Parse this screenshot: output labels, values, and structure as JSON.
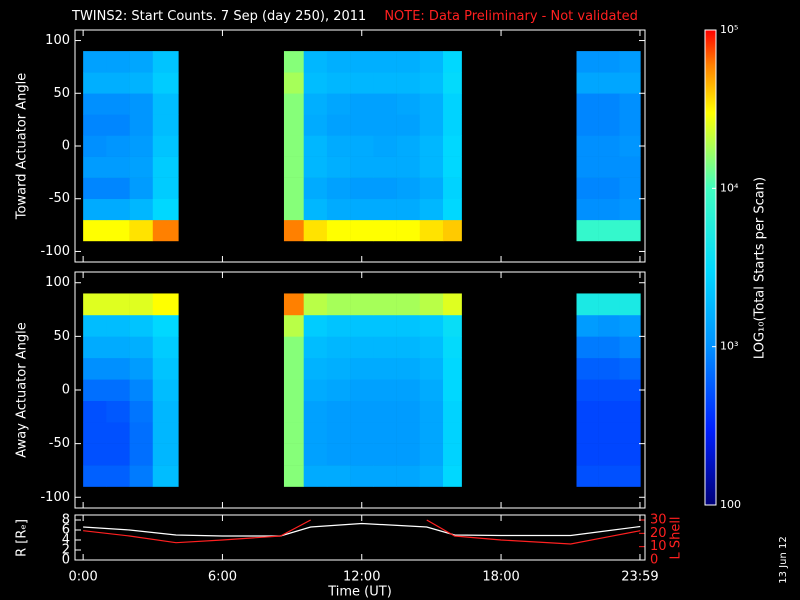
{
  "header": {
    "title": "TWINS2: Start Counts.  7 Sep (day 250), 2011",
    "note": "NOTE: Data Preliminary - Not validated"
  },
  "date_stamp": "13 Jun 12",
  "colorbar": {
    "label": "LOG₁₀(Total Starts per Scan)",
    "lim": [
      100,
      100000
    ],
    "ticks": [
      {
        "value": 100000,
        "label": "10⁵"
      },
      {
        "value": 10000,
        "label": "10⁴"
      },
      {
        "value": 1000,
        "label": "10³"
      },
      100
    ],
    "log": true,
    "colorscale": [
      [
        100,
        "#000078"
      ],
      [
        300,
        "#0020ff"
      ],
      [
        1000,
        "#0090ff"
      ],
      [
        3000,
        "#00d8ff"
      ],
      [
        10000,
        "#40ffc0"
      ],
      [
        30000,
        "#ffff00"
      ],
      [
        60000,
        "#ff8000"
      ],
      [
        100000,
        "#ff0000"
      ]
    ]
  },
  "chart_data": [
    {
      "type": "heatmap",
      "ylabel": "Toward Actuator Angle",
      "xlim": [
        -0.35,
        24.2
      ],
      "ylim": [
        -110,
        110
      ],
      "yticks": [
        -100,
        -50,
        0,
        50,
        100
      ],
      "bins": [
        0,
        1,
        2,
        3,
        4.1,
        8.65,
        9.5,
        10.5,
        11.5,
        12.5,
        13.5,
        14.5,
        15.5,
        16.3,
        21.25,
        22.2,
        23.1,
        24
      ],
      "y_bins": [
        -90,
        -70,
        -50,
        -30,
        -10,
        10,
        30,
        50,
        70,
        90
      ],
      "z": [
        [
          30000,
          30000,
          35000,
          60000,
          null,
          60000,
          35000,
          30000,
          30000,
          30000,
          30000,
          35000,
          40000,
          null,
          8000,
          8000,
          8000
        ],
        [
          1500,
          1500,
          1800,
          3000,
          null,
          15000,
          1800,
          1500,
          1500,
          1500,
          1500,
          1800,
          3000,
          null,
          1000,
          1000,
          1100
        ],
        [
          900,
          900,
          1200,
          2500,
          null,
          15000,
          1500,
          1300,
          1200,
          1200,
          1300,
          1500,
          2800,
          null,
          900,
          900,
          1000
        ],
        [
          1200,
          1200,
          1300,
          2500,
          null,
          15000,
          1800,
          1600,
          1500,
          1500,
          1500,
          1800,
          3000,
          null,
          1000,
          1000,
          1000
        ],
        [
          1000,
          1100,
          1200,
          2200,
          null,
          15000,
          1800,
          1500,
          1500,
          1400,
          1500,
          1800,
          3000,
          null,
          1000,
          1000,
          1100
        ],
        [
          900,
          900,
          1100,
          2000,
          null,
          15000,
          1500,
          1300,
          1300,
          1300,
          1300,
          1600,
          2800,
          null,
          900,
          900,
          1000
        ],
        [
          1000,
          1000,
          1100,
          2000,
          null,
          15000,
          1600,
          1400,
          1300,
          1300,
          1400,
          1600,
          2800,
          null,
          900,
          900,
          1000
        ],
        [
          1600,
          1600,
          1700,
          2500,
          null,
          18000,
          2000,
          1800,
          1800,
          1800,
          1800,
          2000,
          3200,
          null,
          1400,
          1400,
          1400
        ],
        [
          1300,
          1300,
          1400,
          2200,
          null,
          15000,
          1800,
          1600,
          1600,
          1600,
          1600,
          1800,
          3000,
          null,
          1100,
          1100,
          1200
        ]
      ]
    },
    {
      "type": "heatmap",
      "ylabel": "Away Actuator Angle",
      "xlim": [
        -0.35,
        24.2
      ],
      "ylim": [
        -110,
        110
      ],
      "yticks": [
        -100,
        -50,
        0,
        50,
        100
      ],
      "bins": [
        0,
        1,
        2,
        3,
        4.1,
        8.65,
        9.5,
        10.5,
        11.5,
        12.5,
        13.5,
        14.5,
        15.5,
        16.3,
        21.25,
        22.2,
        23.1,
        24
      ],
      "y_bins": [
        -90,
        -70,
        -50,
        -30,
        -10,
        10,
        30,
        50,
        70,
        90
      ],
      "z": [
        [
          600,
          600,
          800,
          2000,
          null,
          15000,
          1500,
          1500,
          1400,
          1400,
          1400,
          1600,
          3000,
          null,
          500,
          500,
          500
        ],
        [
          500,
          500,
          700,
          1800,
          null,
          15000,
          1300,
          1200,
          1200,
          1200,
          1200,
          1400,
          2800,
          null,
          450,
          450,
          450
        ],
        [
          500,
          500,
          700,
          1800,
          null,
          15000,
          1300,
          1200,
          1200,
          1200,
          1200,
          1400,
          2800,
          null,
          450,
          450,
          450
        ],
        [
          500,
          550,
          750,
          1800,
          null,
          15000,
          1300,
          1200,
          1200,
          1200,
          1200,
          1400,
          2800,
          null,
          450,
          450,
          450
        ],
        [
          700,
          700,
          900,
          2000,
          null,
          15000,
          1500,
          1400,
          1300,
          1300,
          1300,
          1500,
          3000,
          null,
          500,
          500,
          500
        ],
        [
          1000,
          1000,
          1200,
          2200,
          null,
          15000,
          1700,
          1600,
          1500,
          1500,
          1500,
          1700,
          3000,
          null,
          600,
          600,
          650
        ],
        [
          1500,
          1500,
          1600,
          2500,
          null,
          15000,
          2000,
          1800,
          1800,
          1800,
          1800,
          2000,
          3200,
          null,
          800,
          800,
          900
        ],
        [
          2000,
          2000,
          2200,
          3000,
          null,
          20000,
          2500,
          2200,
          2200,
          2200,
          2200,
          2400,
          3500,
          null,
          1200,
          1100,
          1200
        ],
        [
          25000,
          25000,
          25000,
          30000,
          null,
          60000,
          20000,
          18000,
          18000,
          18000,
          18000,
          20000,
          25000,
          null,
          5000,
          5000,
          5000
        ]
      ]
    },
    {
      "type": "line",
      "xlabel": "Time (UT)",
      "ylabel": "R [Rₑ]",
      "y2label": "L Shell",
      "xlim": [
        -0.35,
        24.2
      ],
      "xticks": [
        {
          "value": 0,
          "label": "0:00"
        },
        {
          "value": 6,
          "label": "6:00"
        },
        {
          "value": 12,
          "label": "12:00"
        },
        {
          "value": 18,
          "label": "18:00"
        },
        {
          "value": 23.983,
          "label": "23:59"
        }
      ],
      "ylim": [
        0,
        9
      ],
      "yticks": [
        0,
        2,
        4,
        6,
        8
      ],
      "y2lim": [
        0,
        33.75
      ],
      "y2ticks": [
        0,
        10,
        20,
        30
      ],
      "x": [
        0,
        2,
        4,
        6,
        8.5,
        9.8,
        12,
        14.8,
        16,
        18,
        21,
        22.5,
        24
      ],
      "series": [
        {
          "name": "R",
          "color": "#ffffff",
          "values": [
            6.6,
            6,
            5,
            4.8,
            4.8,
            6.6,
            7.3,
            6.6,
            5,
            4.9,
            4.9,
            5.8,
            6.7
          ]
        },
        {
          "name": "L Shell",
          "color": "#ff2020",
          "axis": "y2",
          "values": [
            22,
            18,
            13,
            15,
            18,
            30,
            null,
            30,
            18,
            15,
            12,
            17,
            22
          ]
        }
      ]
    }
  ]
}
